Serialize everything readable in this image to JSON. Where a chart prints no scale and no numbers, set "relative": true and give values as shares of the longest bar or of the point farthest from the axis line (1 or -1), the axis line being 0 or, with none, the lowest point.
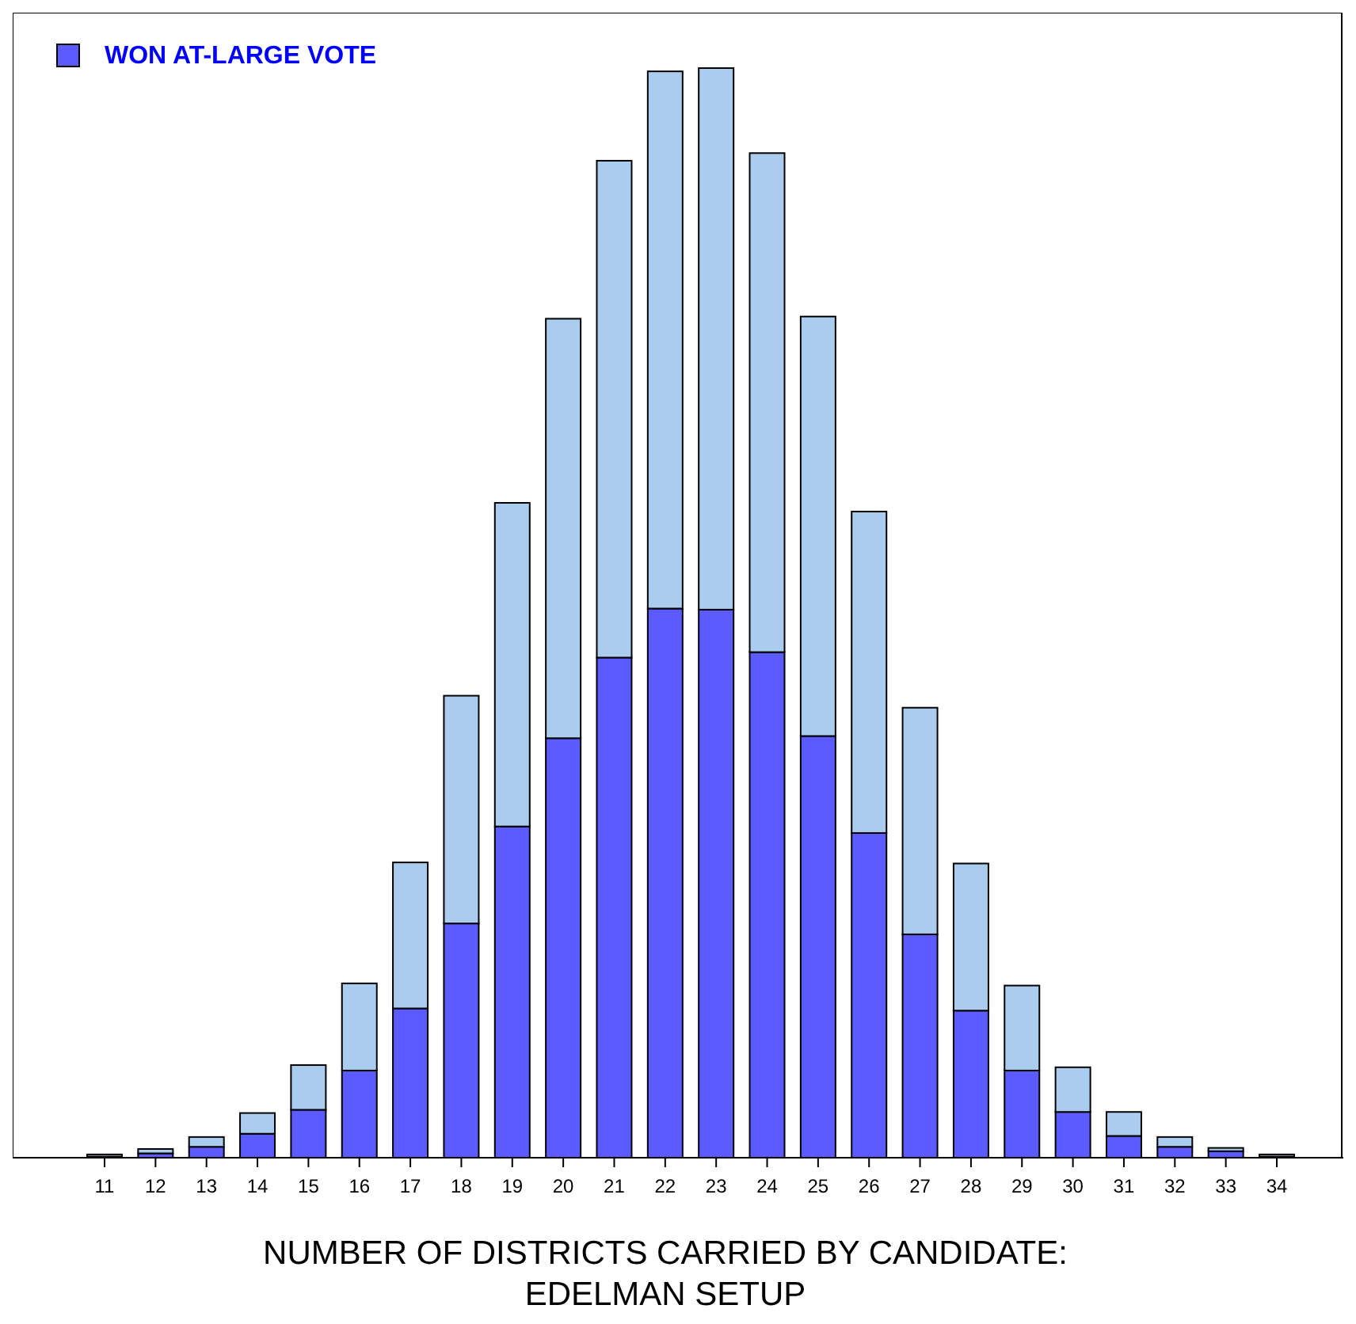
{
  "chart_data": {
    "type": "bar",
    "stacked": true,
    "relative": true,
    "xlabel": "NUMBER OF DISTRICTS CARRIED BY CANDIDATE:\nEDELMAN SETUP",
    "legend": "top left",
    "categories": [
      "11",
      "12",
      "13",
      "14",
      "15",
      "16",
      "17",
      "18",
      "19",
      "20",
      "21",
      "22",
      "23",
      "24",
      "25",
      "26",
      "27",
      "28",
      "29",
      "30",
      "31",
      "32",
      "33",
      "34"
    ],
    "series": [
      {
        "name": "WON AT-LARGE VOTE",
        "color": "#5b5bff",
        "values": [
          0.001,
          0.004,
          0.01,
          0.022,
          0.044,
          0.08,
          0.137,
          0.215,
          0.304,
          0.385,
          0.459,
          0.504,
          0.503,
          0.464,
          0.387,
          0.298,
          0.205,
          0.135,
          0.08,
          0.042,
          0.02,
          0.01,
          0.006,
          0.001
        ]
      },
      {
        "color": "#aacdef",
        "values": [
          0.002,
          0.004,
          0.009,
          0.019,
          0.041,
          0.08,
          0.134,
          0.209,
          0.297,
          0.385,
          0.456,
          0.493,
          0.497,
          0.458,
          0.385,
          0.295,
          0.208,
          0.135,
          0.078,
          0.041,
          0.022,
          0.009,
          0.003,
          0.002
        ]
      }
    ]
  }
}
